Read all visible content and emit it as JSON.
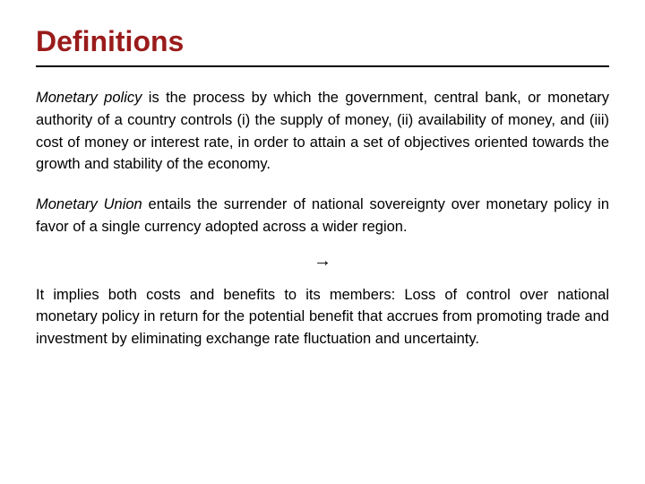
{
  "title": "Definitions",
  "title_color": "#9a1b1b",
  "divider_color": "#000000",
  "text_color": "#000000",
  "background_color": "#ffffff",
  "paragraphs": {
    "p1_term": "Monetary policy",
    "p1_rest": " is the process by which the government, central bank, or monetary authority of a country controls (i) the supply of money, (ii) availability of money, and (iii) cost of money or interest rate, in order to attain a set of objectives oriented towards the growth and stability of the economy.",
    "p2_term": "Monetary Union",
    "p2_rest": " entails the surrender of national sovereignty over monetary policy in favor of a single currency adopted across a wider region.",
    "arrow": "→",
    "p3": "It implies both costs and benefits to its members: Loss of control over national monetary policy in return for the potential benefit that accrues from promoting trade and investment by eliminating exchange rate fluctuation and uncertainty."
  }
}
